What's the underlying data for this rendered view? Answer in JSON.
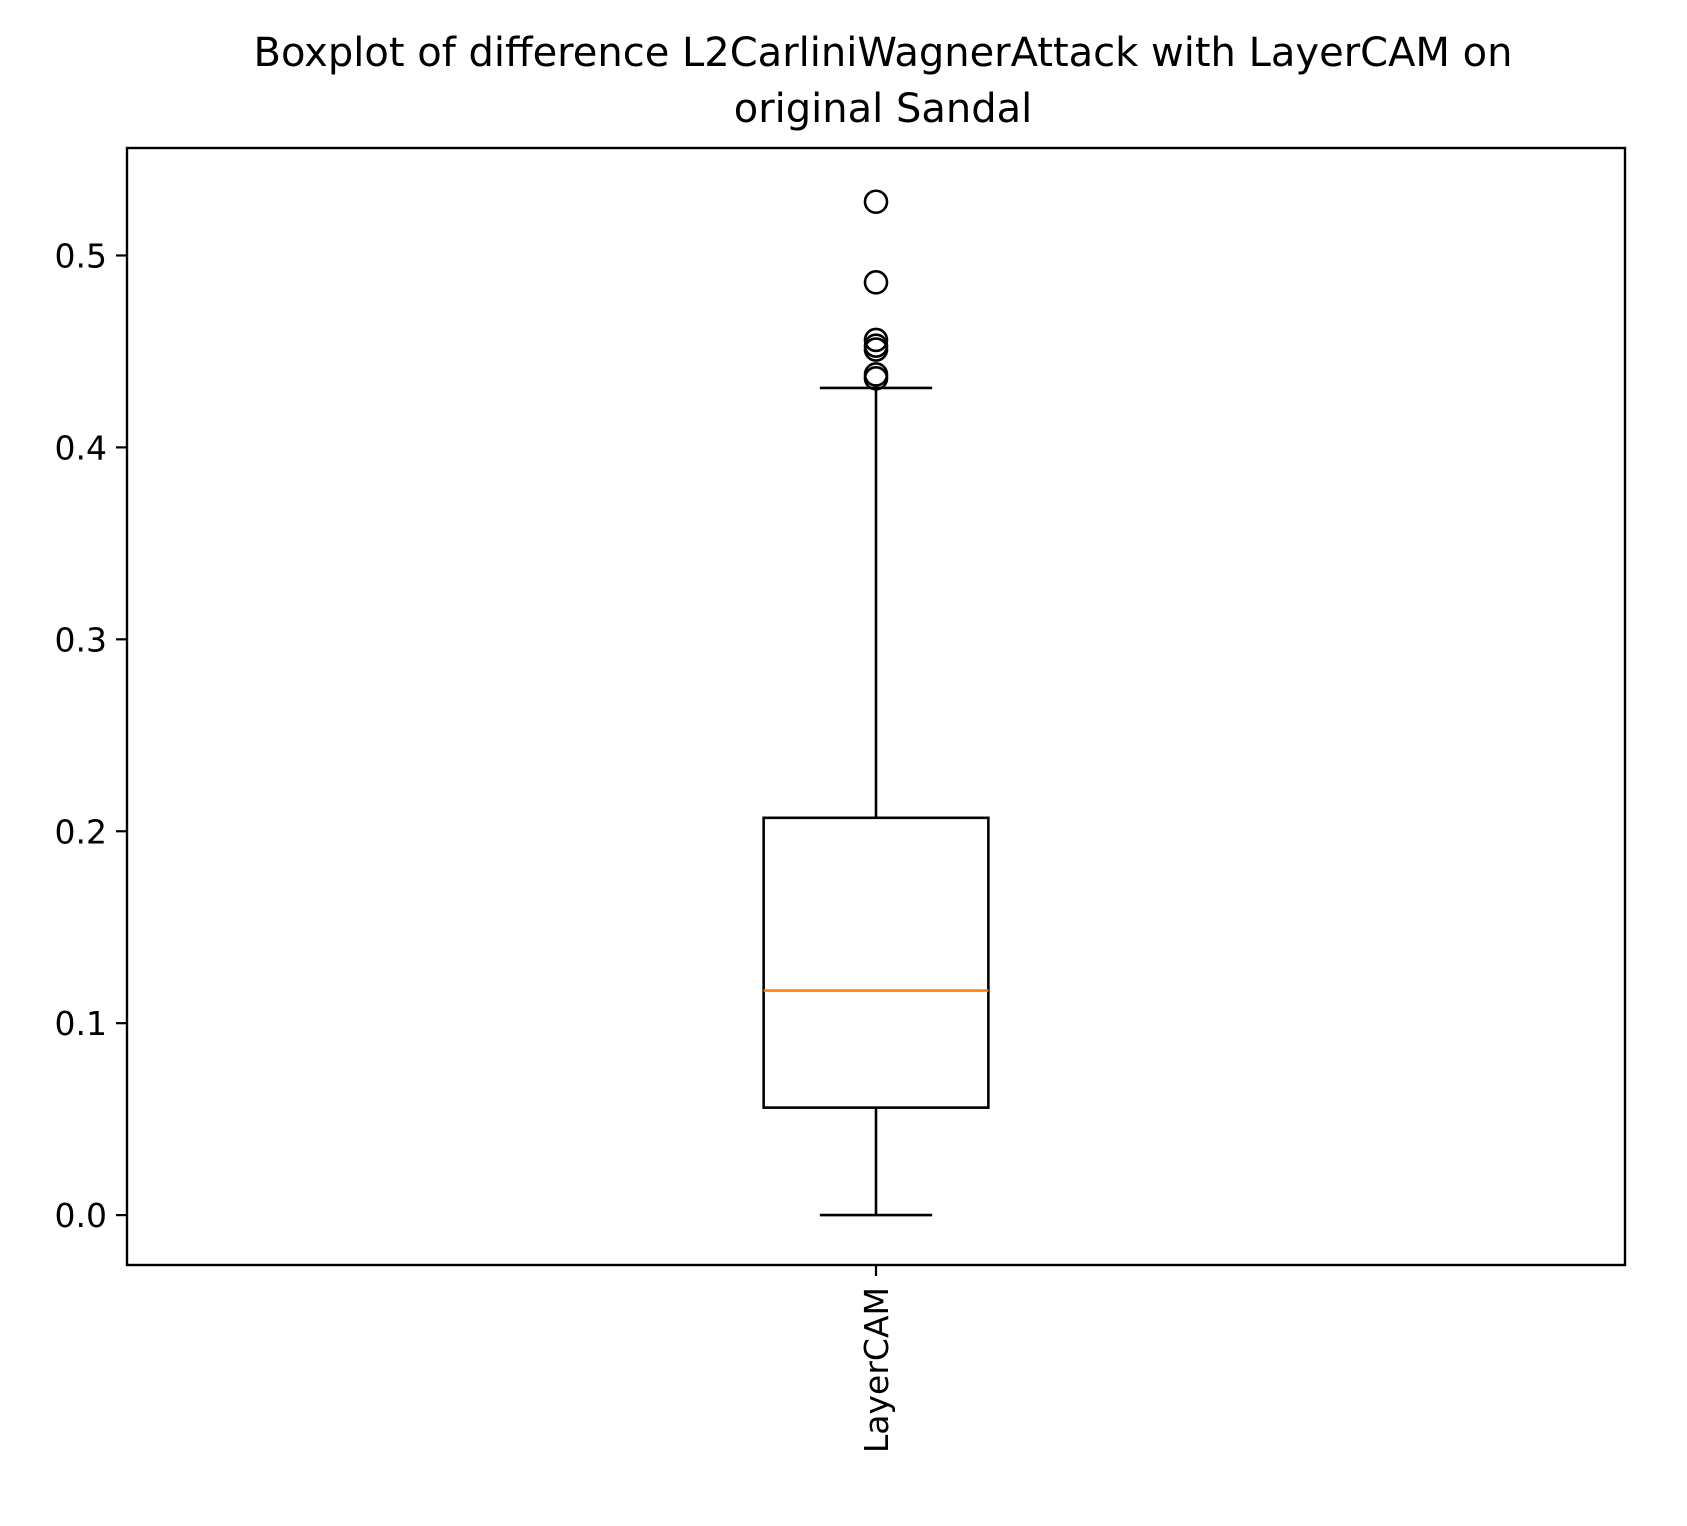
{
  "chart_data": {
    "type": "boxplot",
    "title_lines": [
      "Boxplot of difference L2CarliniWagnerAttack with LayerCAM on",
      "original Sandal"
    ],
    "xlabel": "",
    "ylabel": "",
    "categories": [
      "LayerCAM"
    ],
    "ylim": [
      -0.026,
      0.556
    ],
    "yticks": [
      0.0,
      0.1,
      0.2,
      0.3,
      0.4,
      0.5
    ],
    "ytick_labels": [
      "0.0",
      "0.1",
      "0.2",
      "0.3",
      "0.4",
      "0.5"
    ],
    "grid": false,
    "boxes": [
      {
        "category": "LayerCAM",
        "whisker_low": 0.0,
        "q1": 0.056,
        "median": 0.117,
        "q3": 0.207,
        "whisker_high": 0.431,
        "outliers": [
          0.436,
          0.438,
          0.451,
          0.453,
          0.456,
          0.486,
          0.528
        ]
      }
    ],
    "colors": {
      "box": "#000000",
      "median": "#ff7f0e",
      "outlier": "#000000",
      "axes": "#000000"
    }
  }
}
